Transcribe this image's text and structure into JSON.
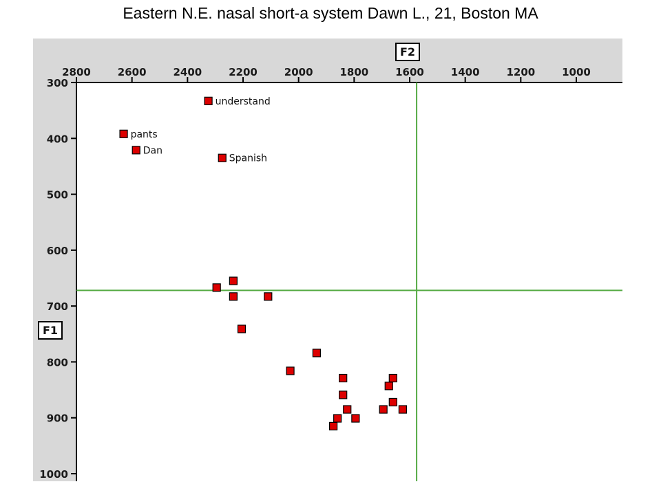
{
  "slide": {
    "title": "Eastern N.E. nasal short-a system Dawn L., 21, Boston MA"
  },
  "colors": {
    "panel_background": "#d8d8d8",
    "plot_background": "#ffffff",
    "marker_fill": "#dd0000",
    "marker_stroke": "#000000",
    "reference_line": "#55aa44",
    "axis_line": "#000000"
  },
  "chart_data": {
    "type": "scatter",
    "x_axis_name": "F2",
    "y_axis_name": "F1",
    "x_ticks": [
      2800,
      2600,
      2400,
      2200,
      2000,
      1800,
      1600,
      1400,
      1200,
      1000
    ],
    "y_ticks": [
      300,
      400,
      500,
      600,
      700,
      800,
      900,
      1000
    ],
    "x_reversed": true,
    "y_reversed": true,
    "xlim": [
      2800,
      890
    ],
    "ylim": [
      300,
      1010
    ],
    "reference_lines": {
      "F2": 1575,
      "F1": 672
    },
    "points": [
      {
        "F2": 2325,
        "F1": 333,
        "label": "understand"
      },
      {
        "F2": 2630,
        "F1": 392,
        "label": "pants"
      },
      {
        "F2": 2585,
        "F1": 421,
        "label": "Dan"
      },
      {
        "F2": 2275,
        "F1": 435,
        "label": "Spanish"
      },
      {
        "F2": 2295,
        "F1": 667
      },
      {
        "F2": 2235,
        "F1": 655
      },
      {
        "F2": 2235,
        "F1": 683
      },
      {
        "F2": 2110,
        "F1": 683
      },
      {
        "F2": 2205,
        "F1": 741
      },
      {
        "F2": 1935,
        "F1": 784
      },
      {
        "F2": 2030,
        "F1": 816
      },
      {
        "F2": 1840,
        "F1": 829
      },
      {
        "F2": 1840,
        "F1": 859
      },
      {
        "F2": 1825,
        "F1": 885
      },
      {
        "F2": 1795,
        "F1": 901
      },
      {
        "F2": 1860,
        "F1": 901
      },
      {
        "F2": 1875,
        "F1": 915
      },
      {
        "F2": 1660,
        "F1": 829
      },
      {
        "F2": 1675,
        "F1": 843
      },
      {
        "F2": 1660,
        "F1": 872
      },
      {
        "F2": 1695,
        "F1": 885
      },
      {
        "F2": 1625,
        "F1": 885
      }
    ]
  }
}
